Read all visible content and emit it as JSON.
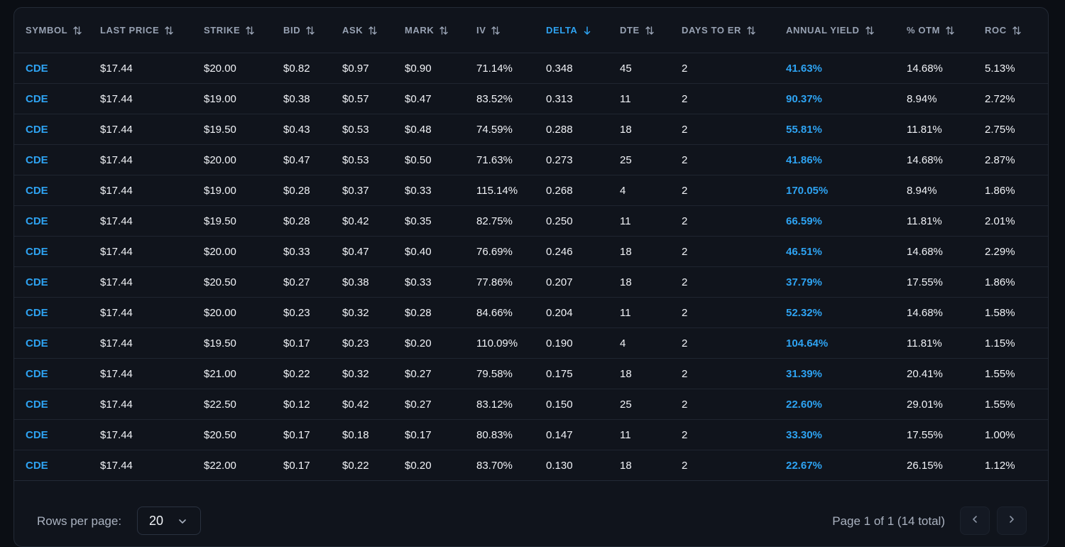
{
  "table": {
    "columns": [
      {
        "key": "symbol",
        "label": "SYMBOL",
        "sort_icon": "sort-updown-icon"
      },
      {
        "key": "last_price",
        "label": "LAST PRICE",
        "sort_icon": "sort-updown-icon"
      },
      {
        "key": "strike",
        "label": "STRIKE",
        "sort_icon": "sort-updown-icon"
      },
      {
        "key": "bid",
        "label": "BID",
        "sort_icon": "sort-updown-icon"
      },
      {
        "key": "ask",
        "label": "ASK",
        "sort_icon": "sort-updown-icon"
      },
      {
        "key": "mark",
        "label": "MARK",
        "sort_icon": "sort-updown-icon"
      },
      {
        "key": "iv",
        "label": "IV",
        "sort_icon": "sort-updown-icon"
      },
      {
        "key": "delta",
        "label": "DELTA",
        "sort_icon": "sort-desc-icon",
        "active": true
      },
      {
        "key": "dte",
        "label": "DTE",
        "sort_icon": "sort-updown-icon"
      },
      {
        "key": "days_to_er",
        "label": "DAYS TO ER",
        "sort_icon": "sort-updown-icon"
      },
      {
        "key": "annual_yield",
        "label": "ANNUAL YIELD",
        "sort_icon": "sort-updown-icon"
      },
      {
        "key": "pct_otm",
        "label": "% OTM",
        "sort_icon": "sort-updown-icon"
      },
      {
        "key": "roc",
        "label": "ROC",
        "sort_icon": "sort-updown-icon"
      }
    ],
    "rows": [
      [
        "CDE",
        "$17.44",
        "$20.00",
        "$0.82",
        "$0.97",
        "$0.90",
        "71.14%",
        "0.348",
        "45",
        "2",
        "41.63%",
        "14.68%",
        "5.13%"
      ],
      [
        "CDE",
        "$17.44",
        "$19.00",
        "$0.38",
        "$0.57",
        "$0.47",
        "83.52%",
        "0.313",
        "11",
        "2",
        "90.37%",
        "8.94%",
        "2.72%"
      ],
      [
        "CDE",
        "$17.44",
        "$19.50",
        "$0.43",
        "$0.53",
        "$0.48",
        "74.59%",
        "0.288",
        "18",
        "2",
        "55.81%",
        "11.81%",
        "2.75%"
      ],
      [
        "CDE",
        "$17.44",
        "$20.00",
        "$0.47",
        "$0.53",
        "$0.50",
        "71.63%",
        "0.273",
        "25",
        "2",
        "41.86%",
        "14.68%",
        "2.87%"
      ],
      [
        "CDE",
        "$17.44",
        "$19.00",
        "$0.28",
        "$0.37",
        "$0.33",
        "115.14%",
        "0.268",
        "4",
        "2",
        "170.05%",
        "8.94%",
        "1.86%"
      ],
      [
        "CDE",
        "$17.44",
        "$19.50",
        "$0.28",
        "$0.42",
        "$0.35",
        "82.75%",
        "0.250",
        "11",
        "2",
        "66.59%",
        "11.81%",
        "2.01%"
      ],
      [
        "CDE",
        "$17.44",
        "$20.00",
        "$0.33",
        "$0.47",
        "$0.40",
        "76.69%",
        "0.246",
        "18",
        "2",
        "46.51%",
        "14.68%",
        "2.29%"
      ],
      [
        "CDE",
        "$17.44",
        "$20.50",
        "$0.27",
        "$0.38",
        "$0.33",
        "77.86%",
        "0.207",
        "18",
        "2",
        "37.79%",
        "17.55%",
        "1.86%"
      ],
      [
        "CDE",
        "$17.44",
        "$20.00",
        "$0.23",
        "$0.32",
        "$0.28",
        "84.66%",
        "0.204",
        "11",
        "2",
        "52.32%",
        "14.68%",
        "1.58%"
      ],
      [
        "CDE",
        "$17.44",
        "$19.50",
        "$0.17",
        "$0.23",
        "$0.20",
        "110.09%",
        "0.190",
        "4",
        "2",
        "104.64%",
        "11.81%",
        "1.15%"
      ],
      [
        "CDE",
        "$17.44",
        "$21.00",
        "$0.22",
        "$0.32",
        "$0.27",
        "79.58%",
        "0.175",
        "18",
        "2",
        "31.39%",
        "20.41%",
        "1.55%"
      ],
      [
        "CDE",
        "$17.44",
        "$22.50",
        "$0.12",
        "$0.42",
        "$0.27",
        "83.12%",
        "0.150",
        "25",
        "2",
        "22.60%",
        "29.01%",
        "1.55%"
      ],
      [
        "CDE",
        "$17.44",
        "$20.50",
        "$0.17",
        "$0.18",
        "$0.17",
        "80.83%",
        "0.147",
        "11",
        "2",
        "33.30%",
        "17.55%",
        "1.00%"
      ],
      [
        "CDE",
        "$17.44",
        "$22.00",
        "$0.17",
        "$0.22",
        "$0.20",
        "83.70%",
        "0.130",
        "18",
        "2",
        "22.67%",
        "26.15%",
        "1.12%"
      ]
    ]
  },
  "footer": {
    "rows_per_page_label": "Rows per page:",
    "rows_per_page_value": "20",
    "page_info": "Page 1 of 1 (14 total)",
    "prev_icon": "chevron-left-icon",
    "next_icon": "chevron-right-icon"
  },
  "colors": {
    "accent": "#2ea3f2",
    "background": "#0b0e14",
    "card": "#10141c",
    "header_text": "#98a2b3",
    "text": "#f1f3f7"
  }
}
